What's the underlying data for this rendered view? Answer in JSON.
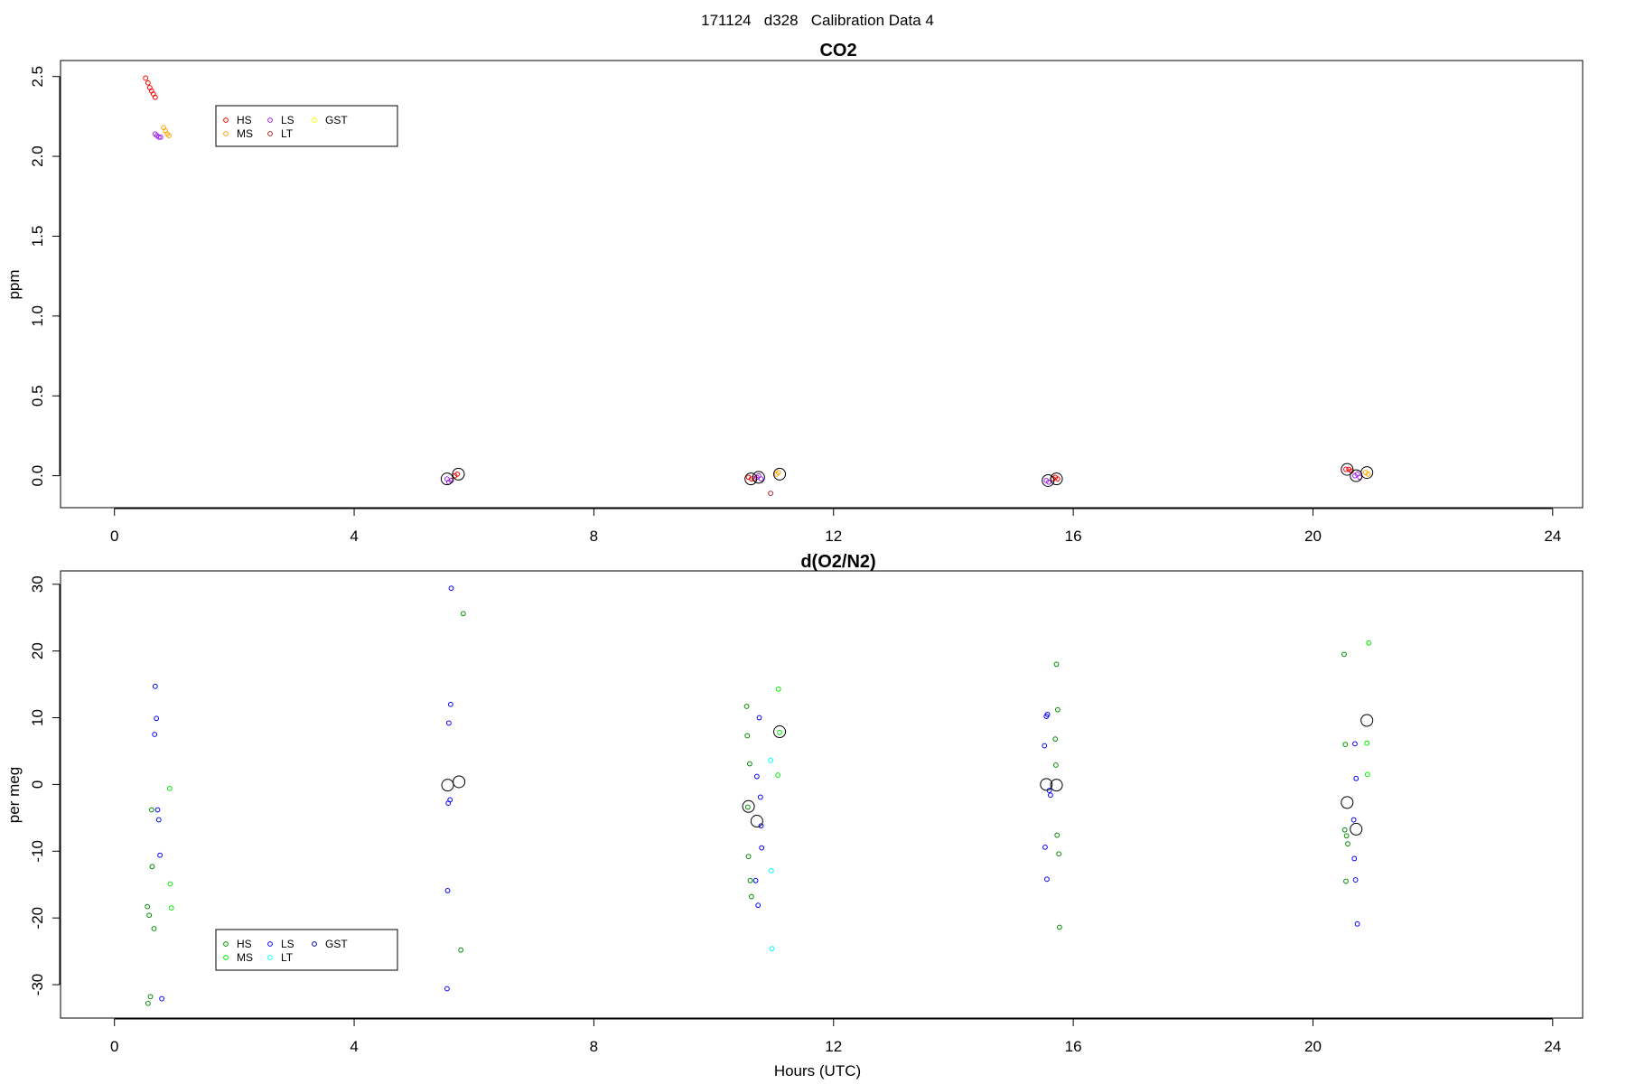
{
  "page_title": "171124   d328   Calibration Data 4",
  "chart_data": [
    {
      "type": "scatter",
      "title": "CO2",
      "xlabel": "",
      "ylabel": "ppm",
      "xlim": [
        -0.9,
        24.5
      ],
      "ylim": [
        -0.2,
        2.6
      ],
      "xticks": [
        0,
        4,
        8,
        12,
        16,
        20,
        24
      ],
      "yticks": [
        0.0,
        0.5,
        1.0,
        1.5,
        2.0,
        2.5
      ],
      "grid": false,
      "legend": {
        "placement": "top-left",
        "columns": 3
      },
      "series": [
        {
          "name": "HS",
          "color": "#ff0000",
          "points": [
            [
              0.52,
              2.49
            ],
            [
              0.56,
              2.46
            ],
            [
              0.59,
              2.43
            ],
            [
              0.62,
              2.41
            ],
            [
              0.65,
              2.39
            ],
            [
              0.68,
              2.37
            ],
            [
              5.68,
              0.0
            ],
            [
              5.72,
              0.01
            ],
            [
              10.58,
              -0.01
            ],
            [
              10.63,
              -0.02
            ],
            [
              10.68,
              -0.02
            ],
            [
              15.66,
              -0.02
            ],
            [
              15.7,
              -0.01
            ],
            [
              15.74,
              -0.02
            ],
            [
              20.55,
              0.04
            ],
            [
              20.6,
              0.04
            ],
            [
              20.64,
              0.03
            ]
          ]
        },
        {
          "name": "MS",
          "color": "#ffa500",
          "points": [
            [
              0.82,
              2.18
            ],
            [
              0.85,
              2.16
            ],
            [
              0.88,
              2.14
            ],
            [
              0.91,
              2.13
            ],
            [
              11.05,
              0.01
            ],
            [
              11.08,
              0.02
            ],
            [
              20.88,
              0.02
            ],
            [
              20.92,
              0.01
            ]
          ]
        },
        {
          "name": "LS",
          "color": "#a020f0",
          "points": [
            [
              0.68,
              2.14
            ],
            [
              0.71,
              2.13
            ],
            [
              0.74,
              2.12
            ],
            [
              0.77,
              2.12
            ],
            [
              5.55,
              -0.02
            ],
            [
              5.58,
              -0.04
            ],
            [
              5.62,
              -0.03
            ],
            [
              10.72,
              -0.01
            ],
            [
              10.75,
              0.0
            ],
            [
              10.79,
              -0.02
            ],
            [
              15.55,
              -0.03
            ],
            [
              15.59,
              -0.04
            ],
            [
              20.7,
              0.0
            ],
            [
              20.74,
              0.01
            ],
            [
              20.78,
              -0.01
            ]
          ]
        },
        {
          "name": "LT",
          "color": "#b22222",
          "points": [
            [
              10.95,
              -0.11
            ]
          ]
        },
        {
          "name": "GST",
          "color": "#ffff00",
          "points": []
        }
      ],
      "averages": [
        [
          5.55,
          -0.02
        ],
        [
          5.74,
          0.01
        ],
        [
          10.62,
          -0.02
        ],
        [
          10.75,
          -0.01
        ],
        [
          11.1,
          0.01
        ],
        [
          15.58,
          -0.03
        ],
        [
          15.72,
          -0.02
        ],
        [
          20.57,
          0.04
        ],
        [
          20.72,
          0.0
        ],
        [
          20.9,
          0.02
        ]
      ]
    },
    {
      "type": "scatter",
      "title": "d(O2/N2)",
      "xlabel": "Hours (UTC)",
      "ylabel": "per meg",
      "xlim": [
        -0.9,
        24.5
      ],
      "ylim": [
        -35,
        32
      ],
      "xticks": [
        0,
        4,
        8,
        12,
        16,
        20,
        24
      ],
      "yticks": [
        -30,
        -20,
        -10,
        0,
        10,
        20,
        30
      ],
      "grid": false,
      "legend": {
        "placement": "bottom-left",
        "columns": 3
      },
      "series": [
        {
          "name": "HS",
          "color": "#008b00",
          "points": [
            [
              0.55,
              -18.3
            ],
            [
              0.58,
              -19.6
            ],
            [
              0.6,
              -31.8
            ],
            [
              0.56,
              -32.8
            ],
            [
              0.62,
              -3.8
            ],
            [
              0.63,
              -12.3
            ],
            [
              0.66,
              -21.6
            ],
            [
              5.82,
              25.6
            ],
            [
              5.78,
              -24.8
            ],
            [
              10.55,
              11.7
            ],
            [
              10.56,
              7.3
            ],
            [
              10.6,
              3.1
            ],
            [
              10.57,
              -3.4
            ],
            [
              10.58,
              -10.8
            ],
            [
              10.61,
              -14.4
            ],
            [
              10.63,
              -16.8
            ],
            [
              15.7,
              6.8
            ],
            [
              15.74,
              11.2
            ],
            [
              15.72,
              18.0
            ],
            [
              15.71,
              2.9
            ],
            [
              15.73,
              -7.6
            ],
            [
              15.76,
              -10.4
            ],
            [
              15.77,
              -21.4
            ],
            [
              20.52,
              19.5
            ],
            [
              20.54,
              6.0
            ],
            [
              20.53,
              -6.8
            ],
            [
              20.56,
              -7.7
            ],
            [
              20.58,
              -8.9
            ],
            [
              20.55,
              -14.5
            ]
          ]
        },
        {
          "name": "MS",
          "color": "#00ee00",
          "points": [
            [
              0.92,
              -0.6
            ],
            [
              0.93,
              -14.9
            ],
            [
              0.95,
              -18.5
            ],
            [
              11.08,
              14.3
            ],
            [
              11.07,
              1.4
            ],
            [
              11.1,
              7.8
            ],
            [
              20.93,
              21.2
            ],
            [
              20.9,
              6.2
            ],
            [
              20.91,
              1.5
            ]
          ]
        },
        {
          "name": "LS",
          "color": "#0000ff",
          "points": [
            [
              0.68,
              14.7
            ],
            [
              0.7,
              9.9
            ],
            [
              0.67,
              7.5
            ],
            [
              0.72,
              -3.8
            ],
            [
              0.74,
              -5.3
            ],
            [
              0.76,
              -10.6
            ],
            [
              0.79,
              -32.1
            ],
            [
              5.62,
              29.4
            ],
            [
              5.61,
              12.0
            ],
            [
              5.58,
              9.2
            ],
            [
              5.6,
              -2.3
            ],
            [
              5.57,
              -2.8
            ],
            [
              5.56,
              -15.9
            ],
            [
              5.55,
              -30.6
            ],
            [
              10.72,
              1.2
            ],
            [
              10.76,
              10.0
            ],
            [
              10.78,
              -1.9
            ],
            [
              10.79,
              -6.2
            ],
            [
              10.8,
              -9.5
            ],
            [
              10.7,
              -14.4
            ],
            [
              10.74,
              -18.1
            ],
            [
              15.55,
              10.2
            ],
            [
              15.57,
              10.5
            ],
            [
              15.52,
              5.8
            ],
            [
              15.6,
              -0.9
            ],
            [
              15.62,
              -1.6
            ],
            [
              15.53,
              -9.4
            ],
            [
              15.56,
              -14.2
            ],
            [
              20.7,
              6.1
            ],
            [
              20.72,
              0.9
            ],
            [
              20.68,
              -5.3
            ],
            [
              20.69,
              -11.1
            ],
            [
              20.71,
              -14.3
            ],
            [
              20.74,
              -20.9
            ]
          ]
        },
        {
          "name": "LT",
          "color": "#00ffff",
          "points": [
            [
              10.95,
              3.6
            ],
            [
              10.96,
              -12.9
            ],
            [
              10.97,
              -24.6
            ]
          ]
        },
        {
          "name": "GST",
          "color": "#00008b",
          "points": []
        }
      ],
      "averages": [
        [
          5.56,
          -0.1
        ],
        [
          5.75,
          0.4
        ],
        [
          10.58,
          -3.3
        ],
        [
          10.72,
          -5.5
        ],
        [
          11.1,
          7.9
        ],
        [
          15.55,
          0.0
        ],
        [
          15.72,
          -0.1
        ],
        [
          20.57,
          -2.7
        ],
        [
          20.72,
          -6.7
        ],
        [
          20.9,
          9.6
        ]
      ]
    }
  ]
}
